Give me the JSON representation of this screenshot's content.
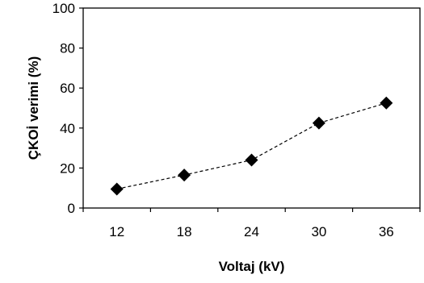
{
  "chart_data": {
    "type": "line",
    "xlabel": "Voltaj (kV)",
    "ylabel": "ÇKOİ verimi (%)",
    "categories": [
      "12",
      "18",
      "24",
      "30",
      "36"
    ],
    "series": [
      {
        "values": [
          9.5,
          16.5,
          24,
          42.5,
          52.5
        ],
        "marker": "diamond",
        "line_style": "dashed"
      }
    ],
    "ylim": [
      0,
      100
    ],
    "yticks": [
      "0",
      "20",
      "40",
      "60",
      "80",
      "100"
    ],
    "grid": false,
    "legend": "none",
    "colors": {
      "marker": "#000000",
      "line": "#000000",
      "axis": "#000000"
    }
  }
}
